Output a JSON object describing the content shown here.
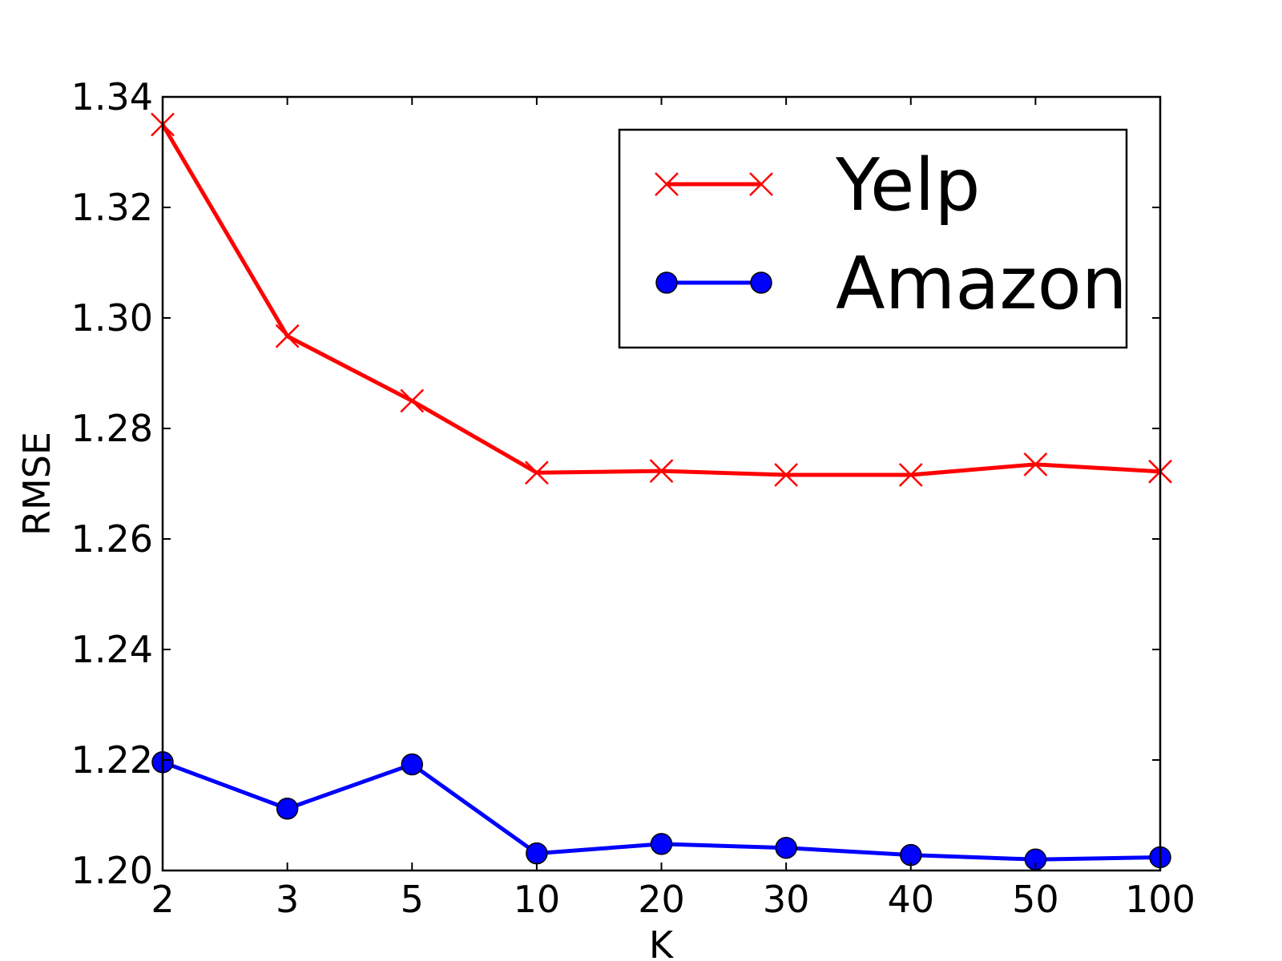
{
  "chart_data": {
    "type": "line",
    "xlabel": "K",
    "ylabel": "RMSE",
    "categories": [
      "2",
      "3",
      "5",
      "10",
      "20",
      "30",
      "40",
      "50",
      "100"
    ],
    "ylim": [
      1.2,
      1.34
    ],
    "yticks": [
      "1.20",
      "1.22",
      "1.24",
      "1.26",
      "1.28",
      "1.30",
      "1.32",
      "1.34"
    ],
    "grid": false,
    "legend_position": "top-right",
    "series": [
      {
        "name": "Yelp",
        "marker": "x",
        "color": "#ff0000",
        "values": [
          1.335,
          1.2967,
          1.285,
          1.272,
          1.2723,
          1.2716,
          1.2716,
          1.2735,
          1.2722
        ]
      },
      {
        "name": "Amazon",
        "marker": "circle",
        "color": "#0000ff",
        "values": [
          1.2196,
          1.2112,
          1.2192,
          1.2031,
          1.2048,
          1.2041,
          1.2028,
          1.202,
          1.2024
        ]
      }
    ]
  }
}
